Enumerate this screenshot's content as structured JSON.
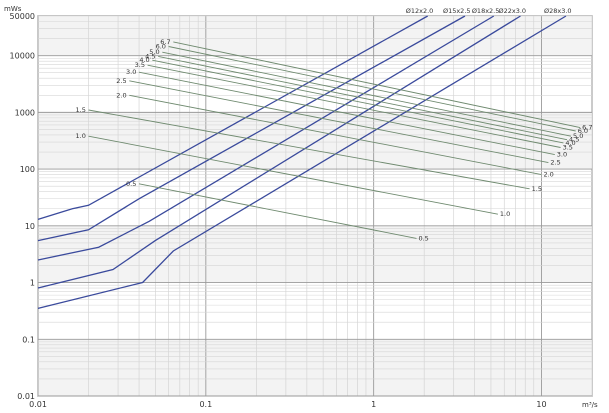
{
  "chart_data": {
    "type": "line",
    "x_scale": "log",
    "y_scale": "log",
    "xlim": [
      0.01,
      20
    ],
    "ylim": [
      0.01,
      50000
    ],
    "grid": true,
    "x_unit_label": "m³/s",
    "y_unit_label": "mWs",
    "x_tick_labels": [
      {
        "value": 0.01,
        "label": "0.01"
      },
      {
        "value": 0.1,
        "label": "0.1"
      },
      {
        "value": 1,
        "label": "1"
      },
      {
        "value": 10,
        "label": "10"
      }
    ],
    "y_tick_labels": [
      {
        "value": 0.01,
        "label": "0.01"
      },
      {
        "value": 0.1,
        "label": "0.1"
      },
      {
        "value": 1,
        "label": "1"
      },
      {
        "value": 10,
        "label": "10"
      },
      {
        "value": 100,
        "label": "100"
      },
      {
        "value": 1000,
        "label": "1000"
      },
      {
        "value": 10000,
        "label": "10000"
      },
      {
        "value": 50000,
        "label": "50000"
      }
    ],
    "diameter_series": [
      {
        "name": "Ø12x2.0",
        "color": "#3a4a9c",
        "points": [
          [
            0.01,
            13
          ],
          [
            0.016,
            20
          ],
          [
            0.02,
            23
          ],
          [
            2.1,
            50000
          ]
        ]
      },
      {
        "name": "Ø15x2.5",
        "color": "#3a4a9c",
        "points": [
          [
            0.01,
            5.5
          ],
          [
            0.02,
            8.5
          ],
          [
            0.04,
            30
          ],
          [
            3.5,
            50000
          ]
        ]
      },
      {
        "name": "Ø18x2.5",
        "color": "#3a4a9c",
        "points": [
          [
            0.01,
            2.5
          ],
          [
            0.023,
            4.2
          ],
          [
            0.046,
            12
          ],
          [
            5.2,
            50000
          ]
        ]
      },
      {
        "name": "Ø22x3.0",
        "color": "#3a4a9c",
        "points": [
          [
            0.01,
            0.8
          ],
          [
            0.028,
            1.7
          ],
          [
            0.05,
            5.5
          ],
          [
            7.5,
            50000
          ]
        ]
      },
      {
        "name": "Ø28x3.0",
        "color": "#3a4a9c",
        "points": [
          [
            0.01,
            0.35
          ],
          [
            0.042,
            1.0
          ],
          [
            0.064,
            3.6
          ],
          [
            14,
            50000
          ]
        ]
      }
    ],
    "speed_series": [
      {
        "name": "0.5",
        "color": "#6f8a6f",
        "points": [
          [
            0.04,
            55
          ],
          [
            1.8,
            6
          ]
        ]
      },
      {
        "name": "1.0",
        "color": "#6f8a6f",
        "points": [
          [
            0.02,
            380
          ],
          [
            5.5,
            16
          ]
        ]
      },
      {
        "name": "1.5",
        "color": "#6f8a6f",
        "points": [
          [
            0.02,
            1100
          ],
          [
            8.5,
            45
          ]
        ]
      },
      {
        "name": "2.0",
        "color": "#6f8a6f",
        "points": [
          [
            0.035,
            2000
          ],
          [
            10,
            80
          ]
        ]
      },
      {
        "name": "2.5",
        "color": "#6f8a6f",
        "points": [
          [
            0.035,
            3600
          ],
          [
            11,
            130
          ]
        ]
      },
      {
        "name": "3.0",
        "color": "#6f8a6f",
        "points": [
          [
            0.04,
            5100
          ],
          [
            12,
            180
          ]
        ]
      },
      {
        "name": "3.5",
        "color": "#6f8a6f",
        "points": [
          [
            0.045,
            6800
          ],
          [
            13,
            240
          ]
        ]
      },
      {
        "name": "4.0",
        "color": "#6f8a6f",
        "points": [
          [
            0.048,
            8300
          ],
          [
            13.5,
            290
          ]
        ]
      },
      {
        "name": "4.5",
        "color": "#6f8a6f",
        "points": [
          [
            0.052,
            9700
          ],
          [
            14.2,
            330
          ]
        ]
      },
      {
        "name": "5.0",
        "color": "#6f8a6f",
        "points": [
          [
            0.055,
            11500
          ],
          [
            15,
            380
          ]
        ]
      },
      {
        "name": "6.0",
        "color": "#6f8a6f",
        "points": [
          [
            0.06,
            14500
          ],
          [
            16,
            470
          ]
        ]
      },
      {
        "name": "6.7",
        "color": "#6f8a6f",
        "points": [
          [
            0.064,
            17500
          ],
          [
            17,
            540
          ]
        ]
      }
    ]
  }
}
